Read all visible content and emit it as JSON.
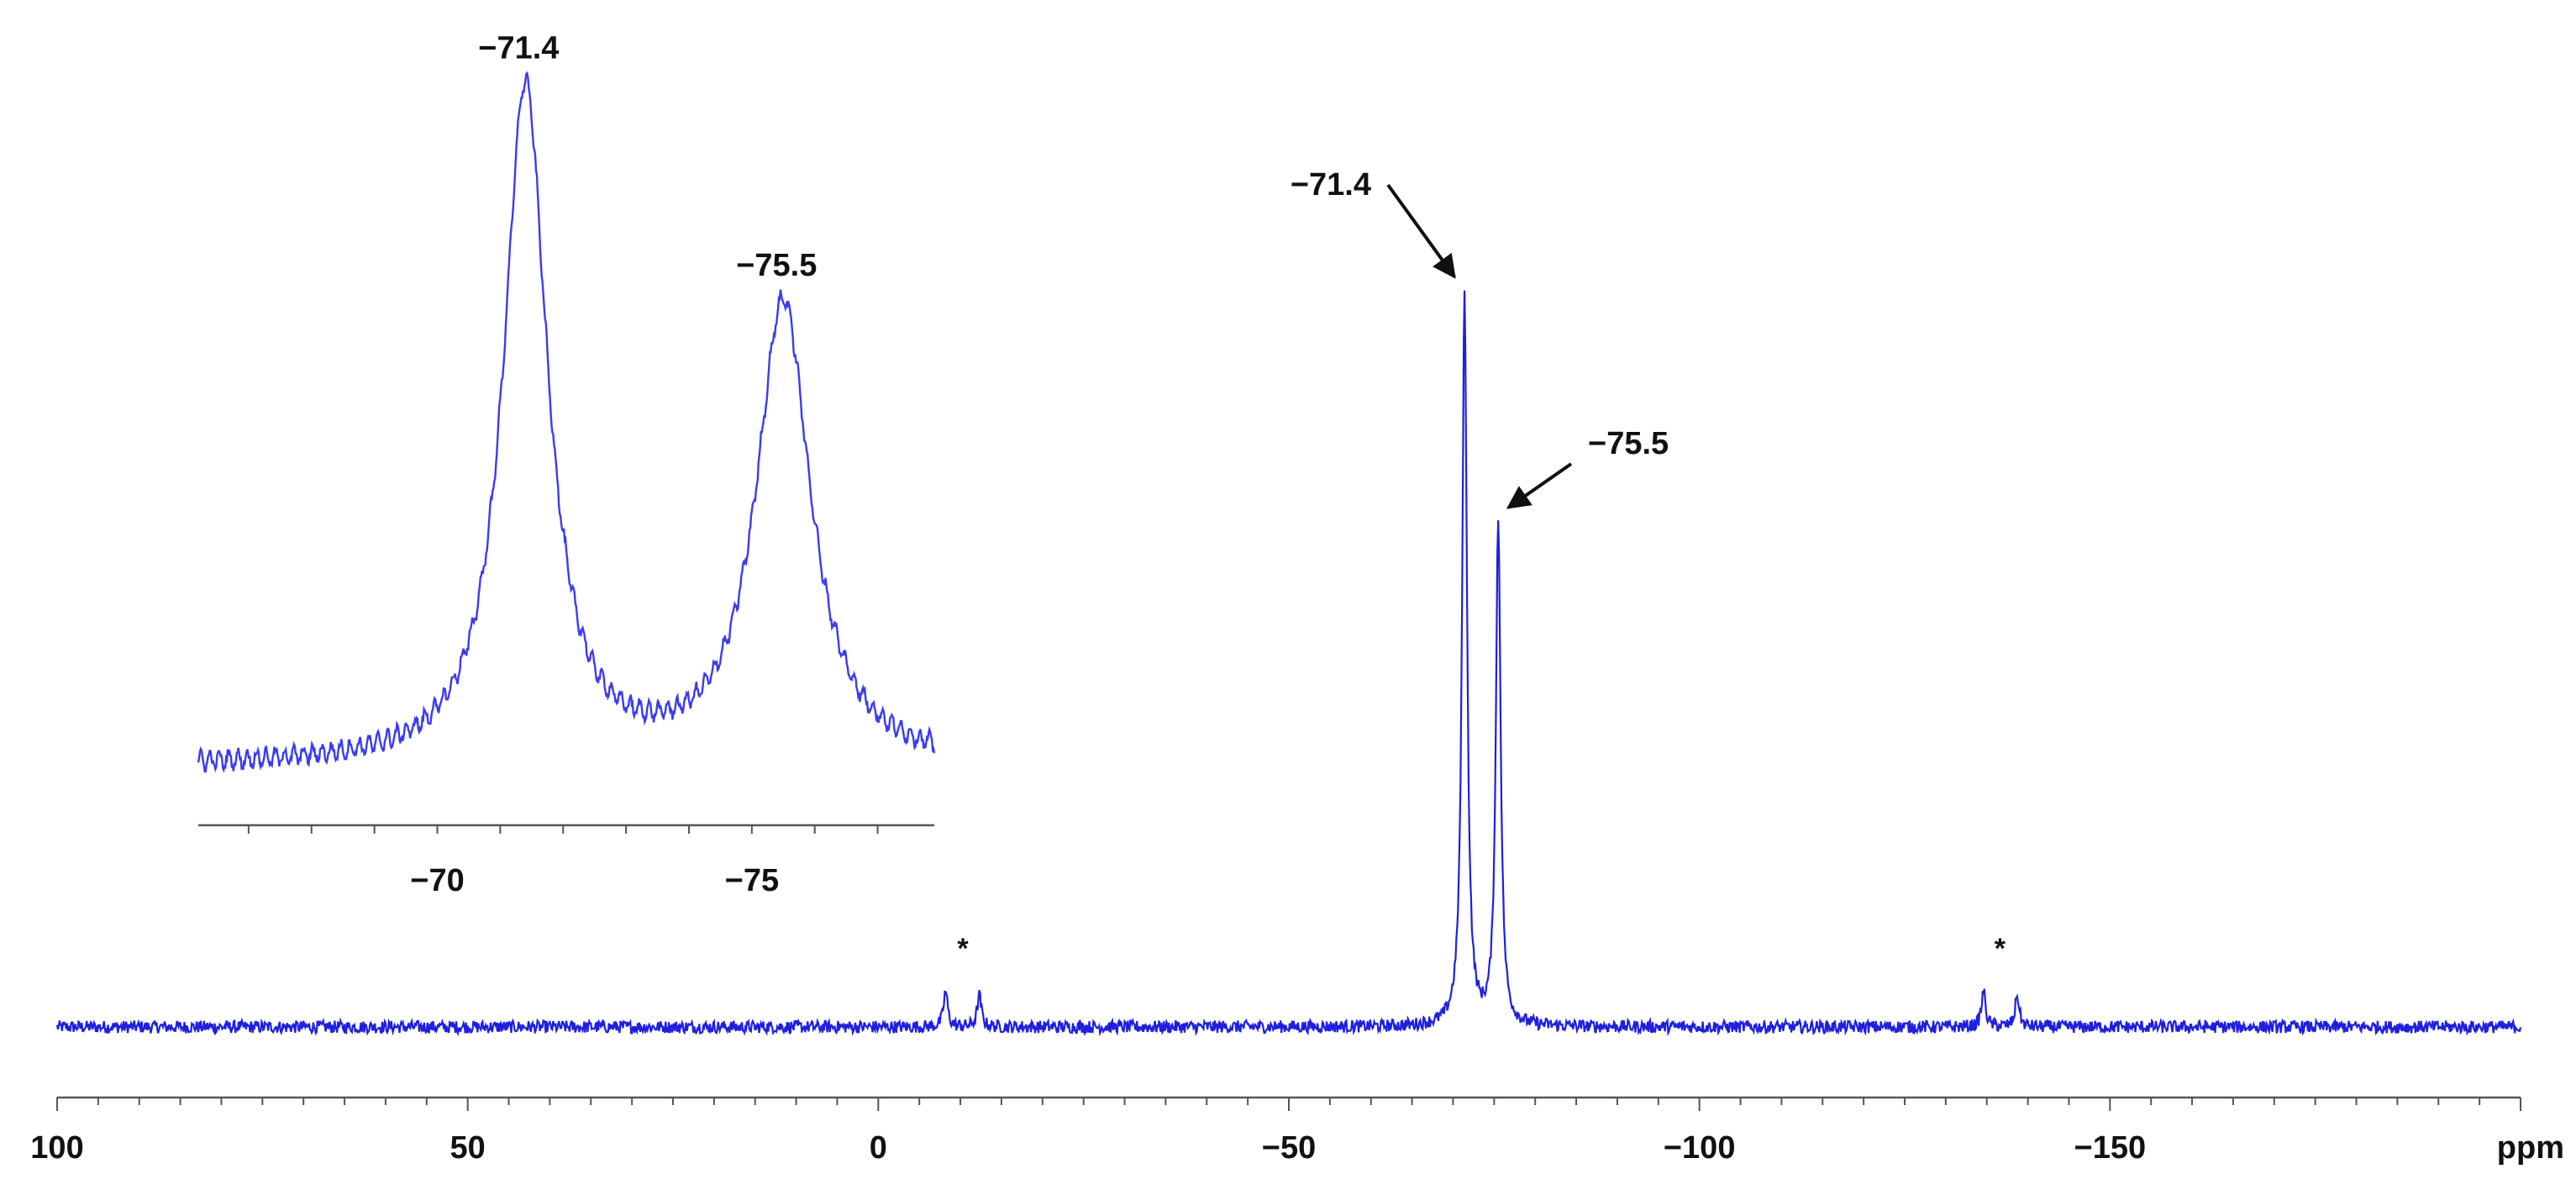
{
  "chart_data": [
    {
      "type": "line",
      "name": "full spectrum",
      "x_unit_label": "ppm",
      "xlim": [
        100,
        -200
      ],
      "x_reversed": true,
      "tick_labels": [
        "100",
        "50",
        "0",
        "−50",
        "−100",
        "−150"
      ],
      "tick_values": [
        100,
        50,
        0,
        -50,
        -100,
        -150
      ],
      "minor_tick_step": 5,
      "baseline": 0,
      "peaks": [
        {
          "x": -71.4,
          "height": 0.93,
          "width": 0.35
        },
        {
          "x": -75.5,
          "height": 0.64,
          "width": 0.35
        },
        {
          "x": -8.2,
          "height": 0.045,
          "width": 0.3
        },
        {
          "x": -12.3,
          "height": 0.04,
          "width": 0.3
        },
        {
          "x": -134.6,
          "height": 0.045,
          "width": 0.3
        },
        {
          "x": -138.7,
          "height": 0.04,
          "width": 0.3
        }
      ],
      "noise_amplitude": 0.008,
      "annotations": [
        {
          "text": "−71.4",
          "x": -71.4,
          "arrow": true
        },
        {
          "text": "−75.5",
          "x": -75.5,
          "arrow": true
        },
        {
          "text": "*",
          "x": -10.3
        },
        {
          "text": "*",
          "x": -136.6
        }
      ],
      "line_color": "#1f1fe0",
      "axis_color": "#555555",
      "grid": false
    },
    {
      "type": "line",
      "name": "inset (expanded region)",
      "xlim": [
        -66.2,
        -77.9
      ],
      "x_reversed": true,
      "tick_labels": [
        "−70",
        "−75"
      ],
      "tick_values": [
        -70,
        -75
      ],
      "baseline": 0,
      "peaks": [
        {
          "x": -71.4,
          "height": 1.0,
          "width": 0.42
        },
        {
          "x": -75.5,
          "height": 0.68,
          "width": 0.52
        }
      ],
      "noise_amplitude": 0.012,
      "annotations": [
        {
          "text": "−71.4",
          "x": -71.4
        },
        {
          "text": "−75.5",
          "x": -75.5
        }
      ],
      "line_color": "#3b3bf0",
      "grid": false
    }
  ]
}
